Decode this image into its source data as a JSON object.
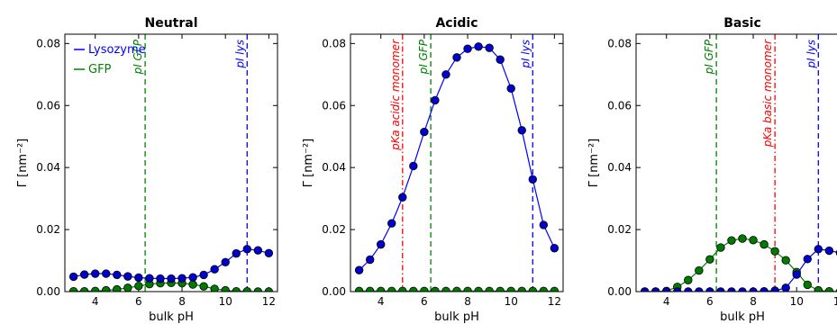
{
  "chart_data": [
    {
      "type": "line",
      "title": "Neutral",
      "xlabel": "bulk pH",
      "ylabel": "Γ [nm⁻²]",
      "xlim": [
        2.6,
        12.4
      ],
      "ylim": [
        0.0,
        0.083
      ],
      "xticks": [
        4,
        6,
        8,
        10,
        12
      ],
      "yticks": [
        0.0,
        0.02,
        0.04,
        0.06,
        0.08
      ],
      "ytick_labels": [
        "0.00",
        "0.02",
        "0.04",
        "0.06",
        "0.08"
      ],
      "x": [
        3.0,
        3.5,
        4.0,
        4.5,
        5.0,
        5.5,
        6.0,
        6.5,
        7.0,
        7.5,
        8.0,
        8.5,
        9.0,
        9.5,
        10.0,
        10.5,
        11.0,
        11.5,
        12.0
      ],
      "legend": {
        "position": "top-left",
        "entries": [
          "Lysozyme",
          "GFP"
        ]
      },
      "series": [
        {
          "name": "Lysozyme",
          "color": "#0000ff",
          "fill": "#0000cc",
          "values": [
            0.0048,
            0.0055,
            0.0058,
            0.0058,
            0.0054,
            0.0049,
            0.0045,
            0.0043,
            0.0042,
            0.0042,
            0.0043,
            0.0046,
            0.0054,
            0.0072,
            0.0095,
            0.0123,
            0.0137,
            0.0133,
            0.0124
          ]
        },
        {
          "name": "GFP",
          "color": "#008000",
          "fill": "#007a00",
          "values": [
            0.0001,
            0.0001,
            0.0002,
            0.0004,
            0.0007,
            0.0012,
            0.0018,
            0.0024,
            0.0027,
            0.0028,
            0.0027,
            0.0023,
            0.0017,
            0.0009,
            0.0004,
            0.0001,
            0.0001,
            0.0,
            0.0
          ]
        }
      ],
      "vlines": [
        {
          "x": 6.3,
          "label": "pI GFP",
          "color": "#008000",
          "style": "dashed"
        },
        {
          "x": 11.0,
          "label": "pI lys",
          "color": "#0000ff",
          "style": "dashed"
        }
      ]
    },
    {
      "type": "line",
      "title": "Acidic",
      "xlabel": "bulk pH",
      "ylabel": "Γ [nm⁻²]",
      "xlim": [
        2.6,
        12.4
      ],
      "ylim": [
        0.0,
        0.083
      ],
      "xticks": [
        4,
        6,
        8,
        10,
        12
      ],
      "yticks": [
        0.0,
        0.02,
        0.04,
        0.06,
        0.08
      ],
      "ytick_labels": [
        "0.00",
        "0.02",
        "0.04",
        "0.06",
        "0.08"
      ],
      "x": [
        3.0,
        3.5,
        4.0,
        4.5,
        5.0,
        5.5,
        6.0,
        6.5,
        7.0,
        7.5,
        8.0,
        8.5,
        9.0,
        9.5,
        10.0,
        10.5,
        11.0,
        11.5,
        12.0
      ],
      "series": [
        {
          "name": "Lysozyme",
          "color": "#0000ff",
          "fill": "#0000cc",
          "values": [
            0.0069,
            0.0103,
            0.0152,
            0.022,
            0.0304,
            0.0405,
            0.0515,
            0.0617,
            0.07,
            0.0755,
            0.0783,
            0.079,
            0.0786,
            0.0748,
            0.0655,
            0.052,
            0.0362,
            0.0215,
            0.014
          ]
        },
        {
          "name": "GFP",
          "color": "#008000",
          "fill": "#007a00",
          "values": [
            0.0002,
            0.0002,
            0.0002,
            0.0002,
            0.0002,
            0.0002,
            0.0002,
            0.0002,
            0.0002,
            0.0002,
            0.0002,
            0.0002,
            0.0002,
            0.0002,
            0.0002,
            0.0002,
            0.0002,
            0.0002,
            0.0002
          ]
        }
      ],
      "vlines": [
        {
          "x": 5.0,
          "label": "pKa acidic monomer",
          "color": "#ff0000",
          "style": "dashdot"
        },
        {
          "x": 6.3,
          "label": "pI GFP",
          "color": "#008000",
          "style": "dashed"
        },
        {
          "x": 11.0,
          "label": "pI lys",
          "color": "#0000ff",
          "style": "dashed"
        }
      ]
    },
    {
      "type": "line",
      "title": "Basic",
      "xlabel": "bulk pH",
      "ylabel": "Γ [nm⁻²]",
      "xlim": [
        2.6,
        12.4
      ],
      "ylim": [
        0.0,
        0.083
      ],
      "xticks": [
        4,
        6,
        8,
        10,
        12
      ],
      "yticks": [
        0.0,
        0.02,
        0.04,
        0.06,
        0.08
      ],
      "ytick_labels": [
        "0.00",
        "0.02",
        "0.04",
        "0.06",
        "0.08"
      ],
      "x": [
        3.0,
        3.5,
        4.0,
        4.5,
        5.0,
        5.5,
        6.0,
        6.5,
        7.0,
        7.5,
        8.0,
        8.5,
        9.0,
        9.5,
        10.0,
        10.5,
        11.0,
        11.5,
        12.0
      ],
      "series": [
        {
          "name": "Lysozyme",
          "color": "#0000ff",
          "fill": "#0000cc",
          "values": [
            0.0,
            0.0,
            0.0,
            0.0,
            0.0,
            0.0,
            0.0,
            0.0,
            0.0,
            0.0,
            0.0,
            0.0001,
            0.0003,
            0.0012,
            0.0055,
            0.0105,
            0.0137,
            0.0132,
            0.0125
          ]
        },
        {
          "name": "GFP",
          "color": "#008000",
          "fill": "#007a00",
          "values": [
            0.0,
            0.0,
            0.0002,
            0.0015,
            0.0037,
            0.0068,
            0.0104,
            0.0142,
            0.0165,
            0.0171,
            0.0166,
            0.0152,
            0.013,
            0.0101,
            0.0063,
            0.0022,
            0.0004,
            0.0001,
            0.0
          ]
        }
      ],
      "vlines": [
        {
          "x": 6.3,
          "label": "pI GFP",
          "color": "#008000",
          "style": "dashed"
        },
        {
          "x": 9.0,
          "label": "pKa basic monomer",
          "color": "#ff0000",
          "style": "dashdot"
        },
        {
          "x": 11.0,
          "label": "pI lys",
          "color": "#0000ff",
          "style": "dashed"
        }
      ]
    }
  ]
}
